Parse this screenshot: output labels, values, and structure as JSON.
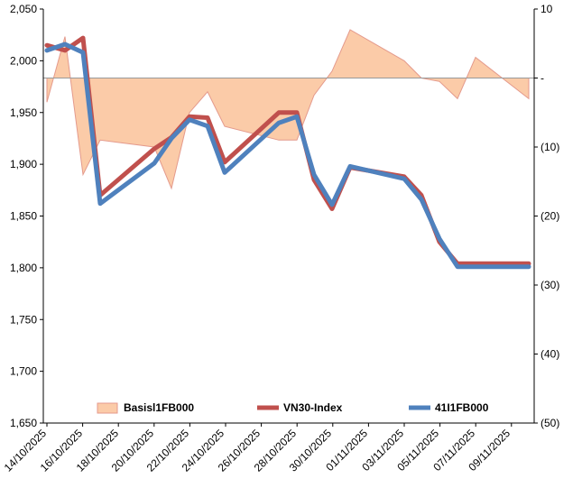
{
  "chart_data": {
    "type": "line",
    "title": "",
    "xlabel": "",
    "ylabel": "",
    "ylim": [
      1650,
      2050
    ],
    "y2lim": [
      -50,
      10
    ],
    "y_ticks": [
      "1,650",
      "1,700",
      "1,750",
      "1,800",
      "1,850",
      "1,900",
      "1,950",
      "2,000",
      "2,050"
    ],
    "y2_ticks": [
      "(50)",
      "(40)",
      "(30)",
      "(20)",
      "(10)",
      "-",
      "10"
    ],
    "x_tick_labels": [
      "14/10/2025",
      "16/10/2025",
      "18/10/2025",
      "20/10/2025",
      "22/10/2025",
      "24/10/2025",
      "26/10/2025",
      "28/10/2025",
      "30/10/2025",
      "01/11/2025",
      "03/11/2025",
      "05/11/2025",
      "07/11/2025",
      "09/11/2025"
    ],
    "categories": [
      "14/10/2025",
      "15/10/2025",
      "16/10/2025",
      "17/10/2025",
      "20/10/2025",
      "21/10/2025",
      "22/10/2025",
      "23/10/2025",
      "24/10/2025",
      "27/10/2025",
      "28/10/2025",
      "29/10/2025",
      "30/10/2025",
      "31/10/2025",
      "03/11/2025",
      "04/11/2025",
      "05/11/2025",
      "06/11/2025",
      "07/11/2025",
      "10/11/2025"
    ],
    "series": [
      {
        "name": "Basisl1FB000",
        "kind": "area",
        "axis": "right",
        "color_fill": "#FBCBA8",
        "color_line": "#E49A8C",
        "values": [
          -3.5,
          6,
          -14,
          -9,
          -10,
          -16,
          -5,
          -2,
          -7,
          -9,
          -9,
          -2.5,
          1,
          7,
          2.5,
          0,
          -0.5,
          -3,
          3,
          -3
        ]
      },
      {
        "name": "VN30-Index",
        "kind": "line",
        "axis": "left",
        "color": "#C0504D",
        "values": [
          2015,
          2010,
          2022,
          1870,
          1915,
          1926,
          1946,
          1945,
          1902,
          1950,
          1950,
          1885,
          1857,
          1897,
          1888,
          1870,
          1825,
          1804,
          1804,
          1804
        ]
      },
      {
        "name": "41I1FB000",
        "kind": "line",
        "axis": "left",
        "color": "#4F81BD",
        "values": [
          2010,
          2016,
          2008,
          1862,
          1901,
          1925,
          1943,
          1937,
          1892,
          1940,
          1946,
          1890,
          1861,
          1898,
          1886,
          1866,
          1828,
          1801,
          1801,
          1801
        ]
      }
    ],
    "legend": [
      "Basisl1FB000",
      "VN30-Index",
      "41I1FB000"
    ],
    "legend_position": "bottom-inside",
    "grid": false
  }
}
